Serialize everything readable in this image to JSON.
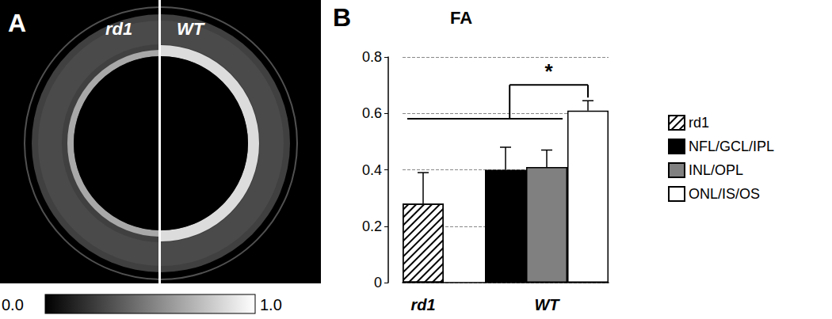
{
  "panel_a": {
    "label": "A",
    "halves": [
      "rd1",
      "WT"
    ],
    "colorbar": {
      "min": {
        "value": 0,
        "label": "0.0"
      },
      "max": {
        "value": 1,
        "label": "1.0"
      }
    }
  },
  "chart_data": {
    "type": "bar",
    "panel_label": "B",
    "title": "FA",
    "categories": [
      "rd1",
      null,
      null,
      "WT",
      null
    ],
    "series": [
      {
        "name": "rd1",
        "color": "#ffffff",
        "marker": "hatched",
        "values": [
          0.28,
          null,
          null,
          null,
          null
        ],
        "errors": [
          0.11,
          null,
          null,
          null,
          null
        ]
      },
      {
        "name": "NFL/GCL/IPL",
        "color": "#000000",
        "values": [
          null,
          null,
          0.4,
          null,
          null
        ],
        "errors": [
          null,
          null,
          0.08,
          null,
          null
        ]
      },
      {
        "name": "INL/OPL",
        "color": "#808080",
        "values": [
          null,
          null,
          null,
          0.41,
          null
        ],
        "errors": [
          null,
          null,
          null,
          0.06,
          null
        ]
      },
      {
        "name": "ONL/IS/OS",
        "color": "#ffffff",
        "values": [
          null,
          null,
          null,
          null,
          0.61
        ],
        "errors": [
          null,
          null,
          null,
          null,
          0.035
        ]
      }
    ],
    "ylim": [
      0,
      0.8
    ],
    "yticks": [
      0,
      0.2,
      0.4,
      0.6,
      0.8
    ],
    "grid": true,
    "legend": "right",
    "annotations": [
      {
        "text": "*",
        "compare": [
          [
            "rd1",
            "NFL/GCL/IPL",
            "INL/OPL"
          ],
          [
            "ONL/IS/OS"
          ]
        ]
      }
    ]
  }
}
